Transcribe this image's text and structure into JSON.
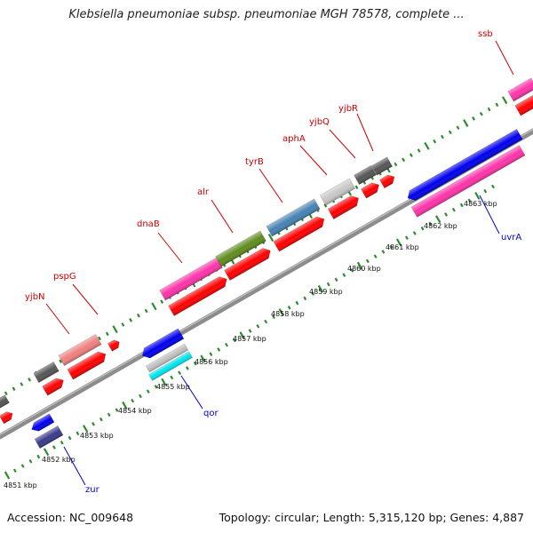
{
  "title": "Klebsiella pneumoniae subsp. pneumoniae MGH 78578, complete ...",
  "footer": {
    "accession": "Accession: NC_009648",
    "summary": "Topology: circular; Length: 5,315,120 bp; Genes: 4,887"
  },
  "colors": {
    "forward_label": "#cc0000",
    "reverse_label": "#0000cc",
    "backbone": "#8c8c8c",
    "tick": "#2e8b2e",
    "cds": "#ff0000",
    "forward_feature": "#ff33aa",
    "reverse_feature": "#0000ee"
  },
  "kbp_labels": [
    "4851 kbp",
    "4852 kbp",
    "4853 kbp",
    "4854 kbp",
    "4855 kbp",
    "4856 kbp",
    "4857 kbp",
    "4858 kbp",
    "4859 kbp",
    "4860 kbp",
    "4861 kbp",
    "4862 kbp",
    "4863 kbp"
  ],
  "forward_genes": [
    "yjbN",
    "pspG",
    "dnaB",
    "alr",
    "tyrB",
    "aphA",
    "yjbQ",
    "yjbR",
    "ssb"
  ],
  "reverse_genes": [
    "zur",
    "qor",
    "uvrA"
  ]
}
